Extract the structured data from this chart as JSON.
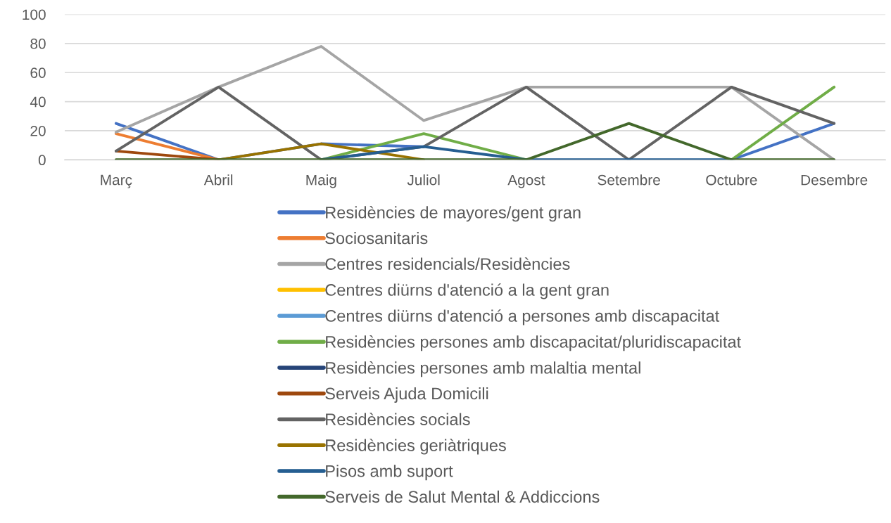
{
  "chart_data": {
    "type": "line",
    "categories": [
      "Març",
      "Abril",
      "Maig",
      "Juliol",
      "Agost",
      "Setembre",
      "Octubre",
      "Desembre"
    ],
    "series": [
      {
        "name": "Residències de mayores/gent gran",
        "color": "#4472c4",
        "values": [
          25,
          0,
          11,
          9,
          null,
          null,
          0,
          25
        ]
      },
      {
        "name": "Sociosanitaris",
        "color": "#ed7d31",
        "values": [
          18,
          0,
          null,
          null,
          null,
          null,
          null,
          null
        ]
      },
      {
        "name": "Centres residencials/Residències",
        "color": "#a5a5a5",
        "values": [
          19,
          50,
          78,
          27,
          50,
          50,
          50,
          0
        ]
      },
      {
        "name": "Centres diürns d'atenció a la gent gran",
        "color": "#ffc000",
        "values": [
          null,
          null,
          null,
          null,
          null,
          null,
          null,
          null
        ]
      },
      {
        "name": "Centres diürns d'atenció a persones amb discapacitat",
        "color": "#5b9bd5",
        "values": [
          null,
          null,
          null,
          null,
          null,
          null,
          null,
          null
        ]
      },
      {
        "name": "Residències persones amb discapacitat/pluridiscapacitat",
        "color": "#70ad47",
        "values": [
          null,
          null,
          0,
          18,
          0,
          null,
          0,
          50
        ]
      },
      {
        "name": "Residències persones amb malaltia mental",
        "color": "#264478",
        "values": [
          null,
          null,
          null,
          null,
          null,
          null,
          null,
          null
        ]
      },
      {
        "name": "Serveis Ajuda Domicili",
        "color": "#9e480e",
        "values": [
          6,
          0,
          null,
          null,
          null,
          null,
          null,
          null
        ]
      },
      {
        "name": "Residències socials",
        "color": "#636363",
        "values": [
          6,
          50,
          0,
          9,
          50,
          0,
          50,
          25
        ]
      },
      {
        "name": "Residències geriàtriques",
        "color": "#997300",
        "values": [
          null,
          0,
          11,
          0,
          null,
          null,
          null,
          null
        ]
      },
      {
        "name": "Pisos amb suport",
        "color": "#255e91",
        "values": [
          null,
          null,
          0,
          9,
          0,
          0,
          0,
          null
        ]
      },
      {
        "name": "Serveis de Salut Mental & Addiccions",
        "color": "#43682b",
        "values": [
          0,
          0,
          0,
          0,
          0,
          25,
          0,
          0
        ]
      }
    ],
    "ylim": [
      0,
      100
    ],
    "yticks": [
      0,
      20,
      40,
      60,
      80,
      100
    ],
    "grid": "y",
    "legend": "bottom",
    "marker": "none",
    "line_style": "solid"
  }
}
